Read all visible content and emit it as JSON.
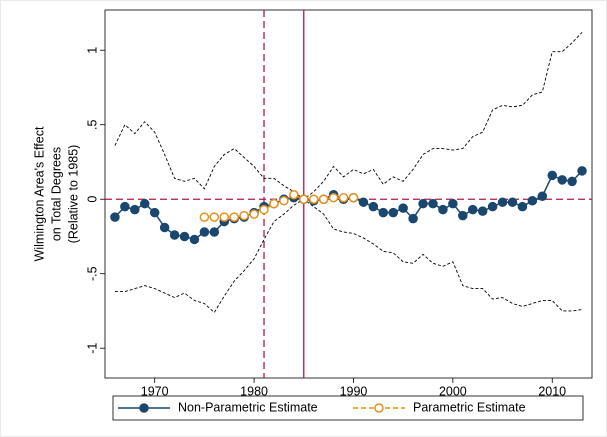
{
  "chart_data": {
    "type": "line",
    "ylabel": [
      "Wilmington Area's Effect",
      "on Total Degrees",
      "(Relative to 1985)"
    ],
    "xlim": [
      1965,
      2014
    ],
    "xticks": [
      1970,
      1980,
      1990,
      2000,
      2010
    ],
    "ylim": [
      -1.2,
      1.27
    ],
    "yticks": [
      {
        "value": -1,
        "label": "-1"
      },
      {
        "value": -0.5,
        "label": "-.5"
      },
      0,
      {
        "value": 0.5,
        "label": ".5"
      },
      1
    ],
    "reference_lines": [
      {
        "axis": "x",
        "value": 1981,
        "style": "dashed",
        "color": "#b01a45"
      },
      {
        "axis": "x",
        "value": 1985,
        "style": "solid",
        "color": "#b01a45"
      },
      {
        "axis": "y",
        "value": 0,
        "style": "dashed",
        "color": "#b01a45"
      }
    ],
    "series": [
      {
        "color": "#000000",
        "style": "dashed",
        "marker": "none",
        "x": [
          1966,
          1967,
          1968,
          1969,
          1970,
          1971,
          1972,
          1973,
          1974,
          1975,
          1976,
          1977,
          1978,
          1979,
          1980,
          1981,
          1982,
          1983,
          1984,
          1985,
          1986,
          1987,
          1988,
          1989,
          1990,
          1991,
          1992,
          1993,
          1994,
          1995,
          1996,
          1997,
          1998,
          1999,
          2000,
          2001,
          2002,
          2003,
          2004,
          2005,
          2006,
          2007,
          2008,
          2009,
          2010,
          2011,
          2012,
          2013
        ],
        "values": [
          0.36,
          0.5,
          0.44,
          0.52,
          0.45,
          0.3,
          0.14,
          0.12,
          0.14,
          0.07,
          0.22,
          0.3,
          0.34,
          0.28,
          0.22,
          0.14,
          0.14,
          0.09,
          0.05,
          0,
          0.05,
          0.12,
          0.22,
          0.15,
          0.2,
          0.17,
          0.2,
          0.1,
          0.15,
          0.12,
          0.2,
          0.3,
          0.34,
          0.34,
          0.33,
          0.34,
          0.42,
          0.45,
          0.6,
          0.63,
          0.62,
          0.63,
          0.7,
          0.72,
          0.99,
          0.99,
          1.05,
          1.12
        ]
      },
      {
        "color": "#000000",
        "style": "dashed",
        "marker": "none",
        "x": [
          1966,
          1967,
          1968,
          1969,
          1970,
          1971,
          1972,
          1973,
          1974,
          1975,
          1976,
          1977,
          1978,
          1979,
          1980,
          1981,
          1982,
          1983,
          1984,
          1985,
          1986,
          1987,
          1988,
          1989,
          1990,
          1991,
          1992,
          1993,
          1994,
          1995,
          1996,
          1997,
          1998,
          1999,
          2000,
          2001,
          2002,
          2003,
          2004,
          2005,
          2006,
          2007,
          2008,
          2009,
          2010,
          2011,
          2012,
          2013
        ],
        "values": [
          -0.62,
          -0.62,
          -0.6,
          -0.58,
          -0.6,
          -0.63,
          -0.66,
          -0.63,
          -0.68,
          -0.7,
          -0.76,
          -0.65,
          -0.55,
          -0.48,
          -0.4,
          -0.27,
          -0.15,
          -0.1,
          -0.04,
          0,
          -0.05,
          -0.1,
          -0.2,
          -0.22,
          -0.23,
          -0.26,
          -0.3,
          -0.35,
          -0.36,
          -0.42,
          -0.43,
          -0.37,
          -0.43,
          -0.45,
          -0.42,
          -0.58,
          -0.6,
          -0.6,
          -0.67,
          -0.66,
          -0.7,
          -0.72,
          -0.7,
          -0.68,
          -0.68,
          -0.75,
          -0.75,
          -0.74
        ]
      },
      {
        "name": "Non-Parametric Estimate",
        "color": "#1a476f",
        "style": "solid",
        "marker": "filled",
        "x": [
          1966,
          1967,
          1968,
          1969,
          1970,
          1971,
          1972,
          1973,
          1974,
          1975,
          1976,
          1977,
          1978,
          1979,
          1980,
          1981,
          1982,
          1983,
          1984,
          1985,
          1986,
          1987,
          1988,
          1989,
          1990,
          1991,
          1992,
          1993,
          1994,
          1995,
          1996,
          1997,
          1998,
          1999,
          2000,
          2001,
          2002,
          2003,
          2004,
          2005,
          2006,
          2007,
          2008,
          2009,
          2010,
          2011,
          2012,
          2013
        ],
        "values": [
          -0.12,
          -0.05,
          -0.07,
          -0.03,
          -0.09,
          -0.19,
          -0.24,
          -0.25,
          -0.27,
          -0.22,
          -0.22,
          -0.15,
          -0.13,
          -0.12,
          -0.09,
          -0.05,
          -0.03,
          0,
          0.01,
          0,
          -0.01,
          0,
          0.03,
          0,
          0.01,
          -0.02,
          -0.05,
          -0.09,
          -0.09,
          -0.06,
          -0.13,
          -0.03,
          -0.03,
          -0.07,
          -0.03,
          -0.11,
          -0.07,
          -0.08,
          -0.05,
          -0.02,
          -0.02,
          -0.05,
          -0.01,
          0.02,
          0.16,
          0.13,
          0.12,
          0.19
        ]
      },
      {
        "name": "Parametric Estimate",
        "color": "#e8901a",
        "style": "dashed",
        "marker": "hollow",
        "x": [
          1975,
          1976,
          1977,
          1978,
          1979,
          1980,
          1981,
          1982,
          1983,
          1984,
          1985,
          1986,
          1987,
          1988,
          1989,
          1990
        ],
        "values": [
          -0.12,
          -0.12,
          -0.12,
          -0.12,
          -0.11,
          -0.1,
          -0.07,
          -0.03,
          -0.01,
          0.03,
          0,
          0,
          0,
          0.01,
          0.01,
          0.01
        ]
      }
    ],
    "legend": "bottom"
  }
}
